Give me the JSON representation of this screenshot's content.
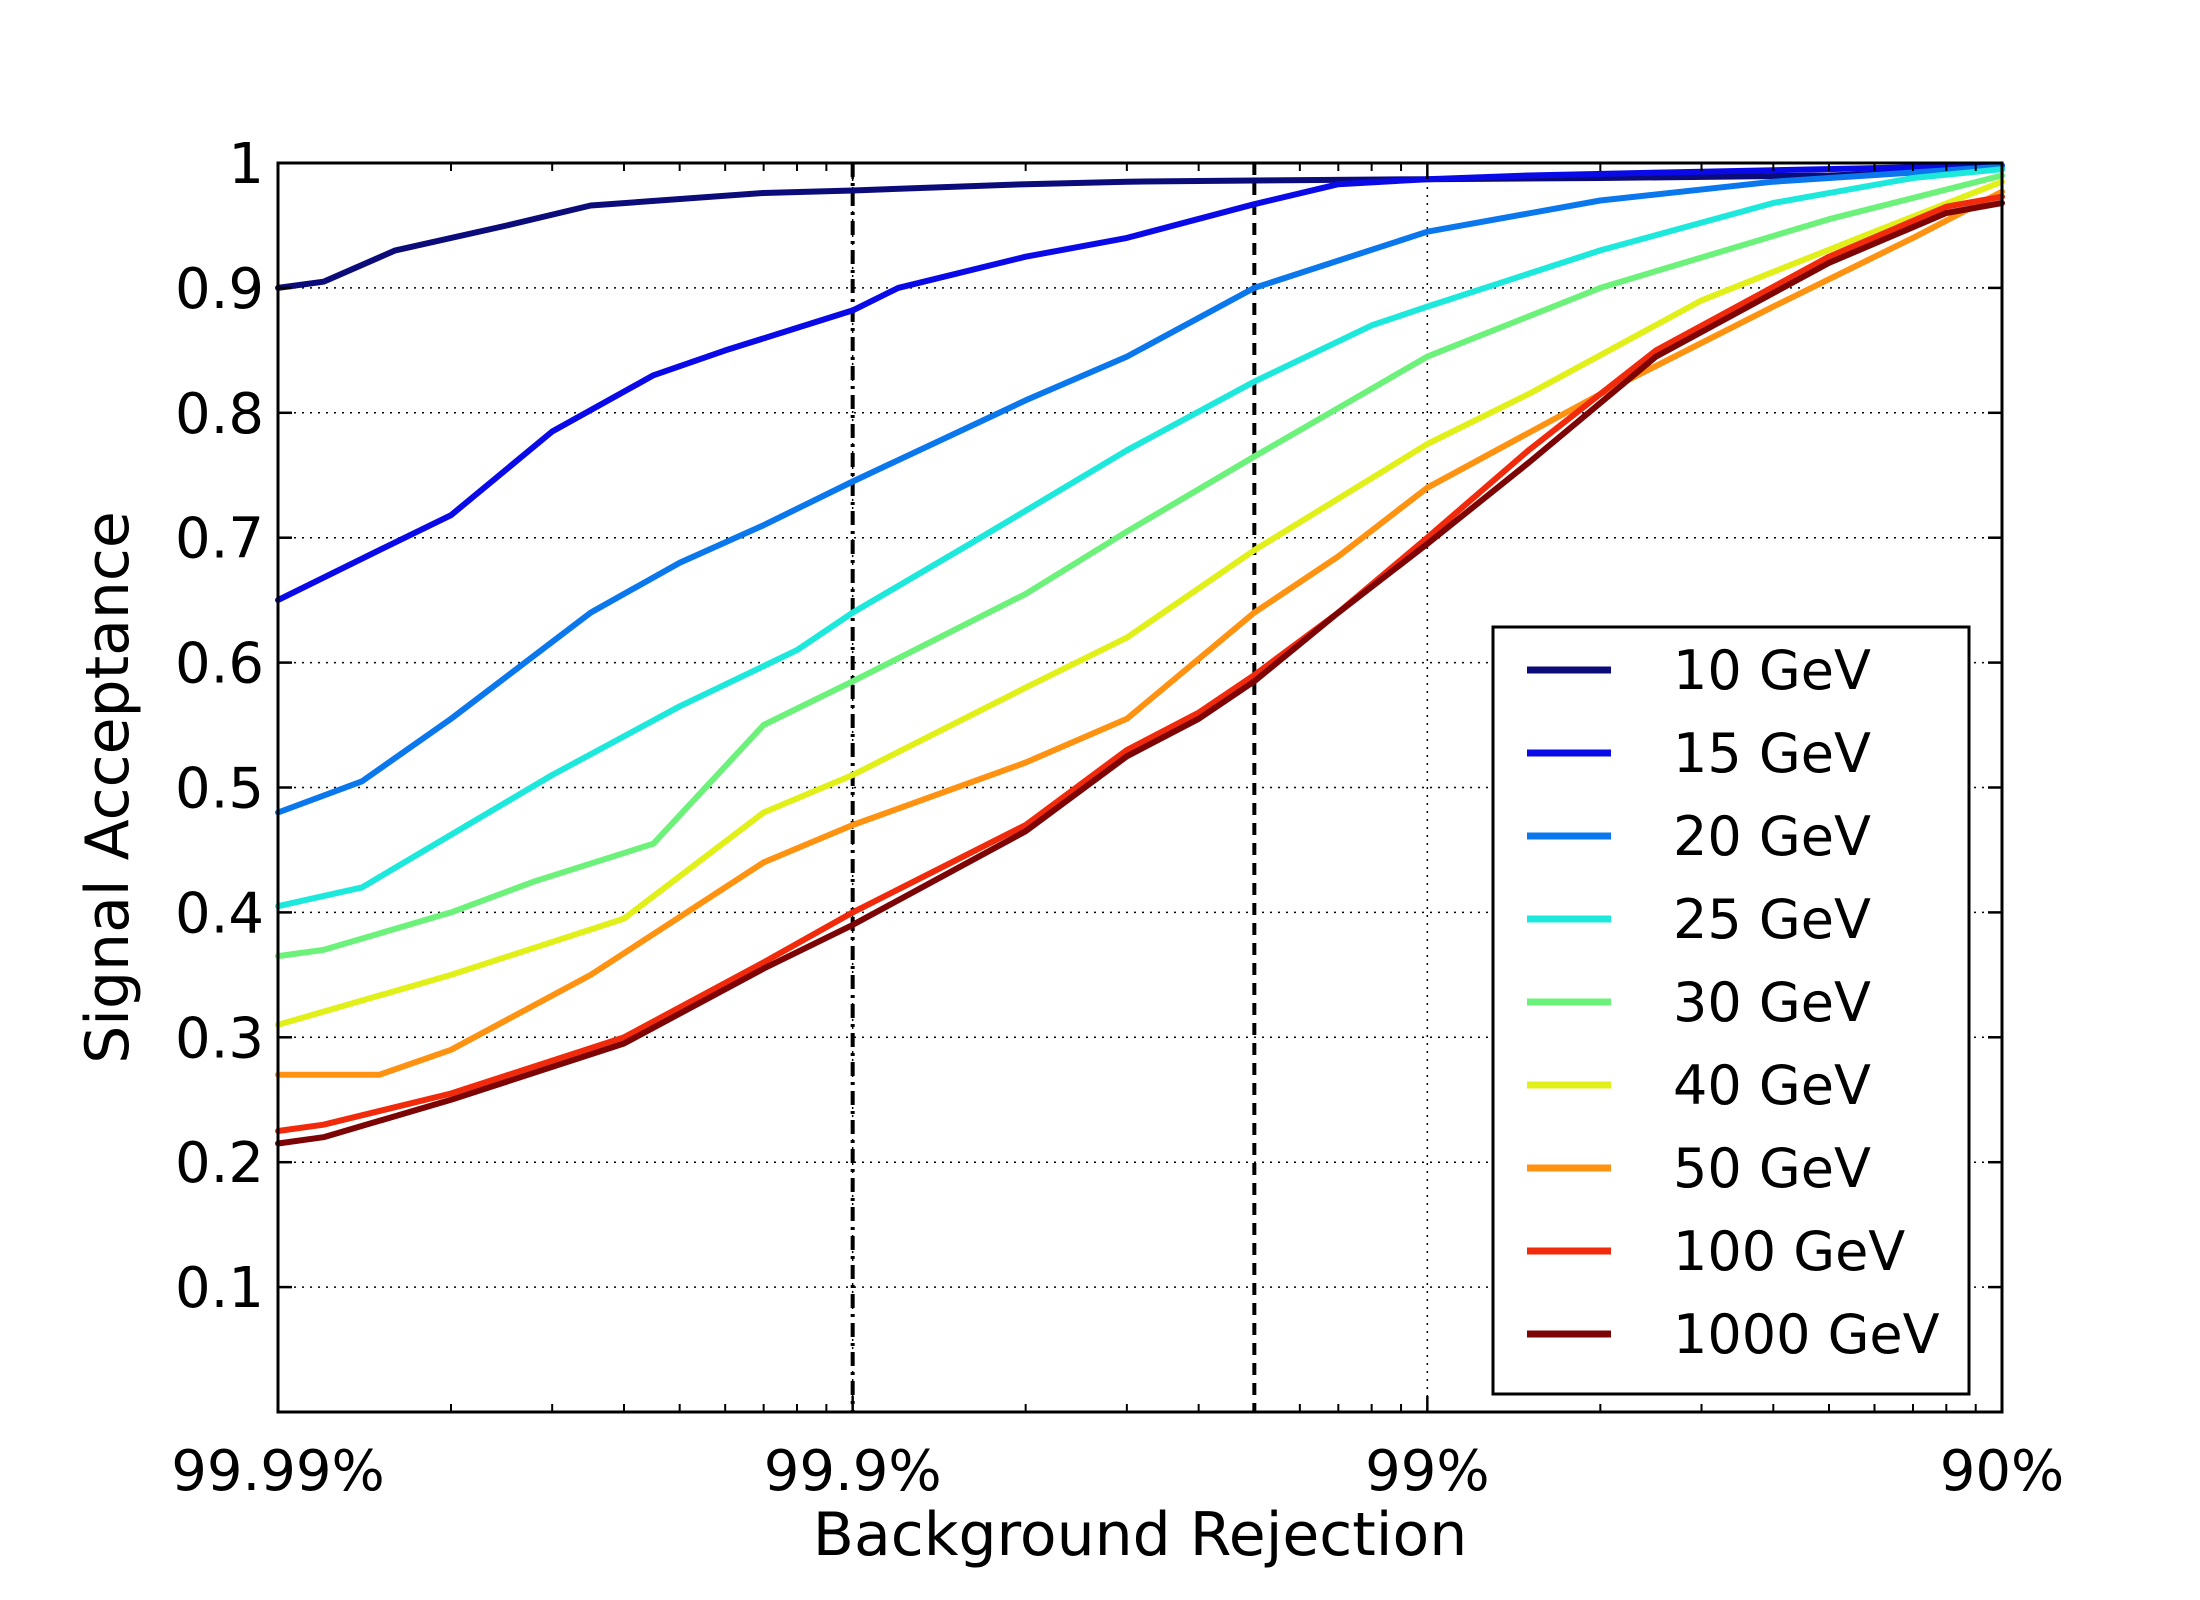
{
  "chart_data": {
    "type": "line",
    "xlabel": "Background Rejection",
    "ylabel": "Signal Acceptance",
    "x_scale": "log (background efficiency, 1 - rejection)",
    "xlim": [
      0.0001,
      0.1
    ],
    "ylim": [
      0,
      1
    ],
    "x_ticks": [
      {
        "value": 0.0001,
        "label": "99.99%"
      },
      {
        "value": 0.001,
        "label": "99.9%"
      },
      {
        "value": 0.01,
        "label": "99%"
      },
      {
        "value": 0.1,
        "label": "90%"
      }
    ],
    "y_ticks": [
      {
        "value": 0.1,
        "label": "0.1"
      },
      {
        "value": 0.2,
        "label": "0.2"
      },
      {
        "value": 0.3,
        "label": "0.3"
      },
      {
        "value": 0.4,
        "label": "0.4"
      },
      {
        "value": 0.5,
        "label": "0.5"
      },
      {
        "value": 0.6,
        "label": "0.6"
      },
      {
        "value": 0.7,
        "label": "0.7"
      },
      {
        "value": 0.8,
        "label": "0.8"
      },
      {
        "value": 0.9,
        "label": "0.9"
      },
      {
        "value": 1.0,
        "label": "1"
      }
    ],
    "grid": true,
    "grid_style": "dotted",
    "legend_position": "lower-right",
    "vertical_lines": [
      {
        "x": 0.001,
        "style": "dash-dot",
        "color": "#000000"
      },
      {
        "x": 0.005,
        "style": "dashed",
        "color": "#000000"
      }
    ],
    "series": [
      {
        "name": "10 GeV",
        "color": "#0b0b7a",
        "x": [
          0.0001,
          0.00012,
          0.00016,
          0.00025,
          0.00035,
          0.0007,
          0.001,
          0.002,
          0.003,
          0.005,
          0.01,
          0.02,
          0.05,
          0.1
        ],
        "y": [
          0.9,
          0.905,
          0.93,
          0.95,
          0.966,
          0.976,
          0.978,
          0.983,
          0.985,
          0.986,
          0.987,
          0.988,
          0.99,
          0.995
        ]
      },
      {
        "name": "15 GeV",
        "color": "#0a0ae8",
        "x": [
          0.0001,
          0.00015,
          0.0002,
          0.0003,
          0.00045,
          0.0006,
          0.0008,
          0.001,
          0.0012,
          0.002,
          0.003,
          0.005,
          0.007,
          0.01,
          0.015,
          0.03,
          0.1
        ],
        "y": [
          0.65,
          0.69,
          0.718,
          0.785,
          0.83,
          0.85,
          0.868,
          0.882,
          0.9,
          0.925,
          0.94,
          0.967,
          0.983,
          0.987,
          0.99,
          0.993,
          0.998
        ]
      },
      {
        "name": "20 GeV",
        "color": "#0a78ec",
        "x": [
          0.0001,
          0.00014,
          0.0002,
          0.00035,
          0.0005,
          0.0007,
          0.001,
          0.002,
          0.003,
          0.005,
          0.01,
          0.02,
          0.04,
          0.1
        ],
        "y": [
          0.48,
          0.505,
          0.555,
          0.64,
          0.68,
          0.71,
          0.745,
          0.81,
          0.845,
          0.9,
          0.945,
          0.97,
          0.985,
          0.997
        ]
      },
      {
        "name": "25 GeV",
        "color": "#1de8dc",
        "x": [
          0.0001,
          0.00014,
          0.0003,
          0.0005,
          0.0008,
          0.001,
          0.0016,
          0.003,
          0.005,
          0.008,
          0.01,
          0.02,
          0.04,
          0.07,
          0.1
        ],
        "y": [
          0.405,
          0.42,
          0.51,
          0.565,
          0.61,
          0.64,
          0.695,
          0.77,
          0.825,
          0.87,
          0.885,
          0.93,
          0.968,
          0.988,
          0.995
        ]
      },
      {
        "name": "30 GeV",
        "color": "#6cf27a",
        "x": [
          0.0001,
          0.00012,
          0.0002,
          0.00028,
          0.00045,
          0.0007,
          0.001,
          0.002,
          0.003,
          0.005,
          0.01,
          0.02,
          0.05,
          0.1
        ],
        "y": [
          0.365,
          0.37,
          0.4,
          0.425,
          0.455,
          0.55,
          0.585,
          0.655,
          0.705,
          0.765,
          0.845,
          0.9,
          0.955,
          0.99
        ]
      },
      {
        "name": "40 GeV",
        "color": "#e0f018",
        "x": [
          0.0001,
          0.0002,
          0.0004,
          0.0007,
          0.001,
          0.002,
          0.003,
          0.005,
          0.01,
          0.015,
          0.03,
          0.06,
          0.1
        ],
        "y": [
          0.31,
          0.35,
          0.395,
          0.48,
          0.51,
          0.58,
          0.62,
          0.69,
          0.775,
          0.815,
          0.89,
          0.945,
          0.985
        ]
      },
      {
        "name": "50 GeV",
        "color": "#ff9210",
        "x": [
          0.0001,
          0.00015,
          0.0002,
          0.00035,
          0.0007,
          0.001,
          0.002,
          0.003,
          0.005,
          0.007,
          0.01,
          0.02,
          0.04,
          0.07,
          0.1
        ],
        "y": [
          0.27,
          0.27,
          0.29,
          0.35,
          0.44,
          0.47,
          0.52,
          0.555,
          0.64,
          0.685,
          0.74,
          0.815,
          0.885,
          0.94,
          0.977
        ]
      },
      {
        "name": "100 GeV",
        "color": "#f02a0a",
        "x": [
          0.0001,
          0.00012,
          0.0002,
          0.0004,
          0.0007,
          0.001,
          0.002,
          0.003,
          0.004,
          0.005,
          0.007,
          0.01,
          0.015,
          0.025,
          0.05,
          0.08,
          0.1
        ],
        "y": [
          0.225,
          0.23,
          0.255,
          0.3,
          0.36,
          0.4,
          0.47,
          0.53,
          0.56,
          0.59,
          0.64,
          0.7,
          0.77,
          0.85,
          0.925,
          0.965,
          0.973
        ]
      },
      {
        "name": "1000 GeV",
        "color": "#7c0404",
        "x": [
          0.0001,
          0.00012,
          0.0002,
          0.0004,
          0.0007,
          0.001,
          0.002,
          0.003,
          0.004,
          0.005,
          0.007,
          0.01,
          0.015,
          0.025,
          0.05,
          0.08,
          0.1
        ],
        "y": [
          0.215,
          0.22,
          0.25,
          0.295,
          0.355,
          0.39,
          0.465,
          0.525,
          0.555,
          0.585,
          0.64,
          0.695,
          0.76,
          0.845,
          0.92,
          0.96,
          0.968
        ]
      }
    ]
  }
}
